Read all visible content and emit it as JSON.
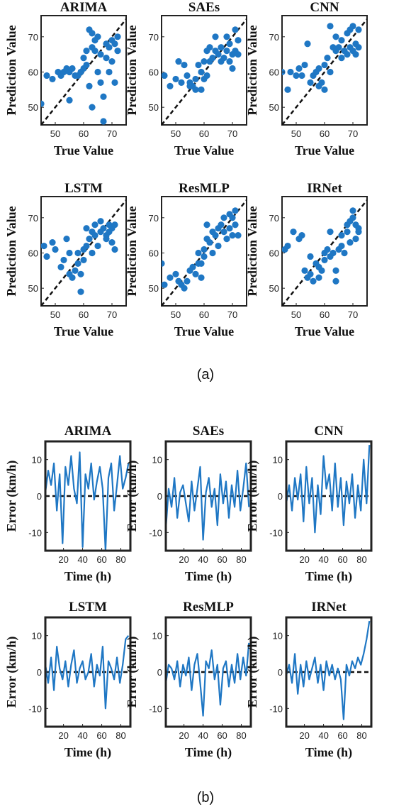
{
  "captions": {
    "a": "(a)",
    "b": "(b)"
  },
  "colors": {
    "series": "#1f77c4",
    "reference": "#111111",
    "axes": "#222222"
  },
  "chart_data": [
    {
      "id": "a",
      "type": "scatter",
      "xlabel": "True Value",
      "ylabel": "Prediction Value",
      "xlim": [
        45,
        75
      ],
      "ylim": [
        45,
        76
      ],
      "xticks": [
        50,
        60,
        70
      ],
      "yticks": [
        50,
        60,
        70
      ],
      "reference_line": "y = x (dashed)",
      "panels": [
        {
          "title": "ARIMA",
          "points": [
            [
              45,
              51
            ],
            [
              47,
              59
            ],
            [
              49,
              58
            ],
            [
              51,
              60
            ],
            [
              52,
              59
            ],
            [
              53,
              60
            ],
            [
              54,
              61
            ],
            [
              55,
              60
            ],
            [
              55,
              52
            ],
            [
              56,
              61
            ],
            [
              57,
              59
            ],
            [
              58,
              59
            ],
            [
              59,
              60
            ],
            [
              60,
              61
            ],
            [
              60,
              64
            ],
            [
              61,
              62
            ],
            [
              61,
              66
            ],
            [
              62,
              72
            ],
            [
              63,
              67
            ],
            [
              63,
              71
            ],
            [
              62,
              56
            ],
            [
              63,
              50
            ],
            [
              64,
              66
            ],
            [
              64,
              69
            ],
            [
              65,
              70
            ],
            [
              65,
              60
            ],
            [
              66,
              57
            ],
            [
              66,
              65
            ],
            [
              67,
              53
            ],
            [
              67,
              46
            ],
            [
              68,
              64
            ],
            [
              68,
              68
            ],
            [
              69,
              67
            ],
            [
              69,
              60
            ],
            [
              70,
              69
            ],
            [
              70,
              63
            ],
            [
              71,
              68
            ],
            [
              71,
              57
            ],
            [
              72,
              66
            ],
            [
              72,
              70
            ]
          ]
        },
        {
          "title": "SAEs",
          "points": [
            [
              46,
              59
            ],
            [
              48,
              56
            ],
            [
              50,
              58
            ],
            [
              51,
              63
            ],
            [
              52,
              57
            ],
            [
              53,
              62
            ],
            [
              54,
              59
            ],
            [
              55,
              57
            ],
            [
              55,
              56
            ],
            [
              56,
              56
            ],
            [
              57,
              58
            ],
            [
              57,
              55
            ],
            [
              58,
              62
            ],
            [
              59,
              60
            ],
            [
              59,
              55
            ],
            [
              60,
              58
            ],
            [
              60,
              63
            ],
            [
              61,
              66
            ],
            [
              61,
              59
            ],
            [
              62,
              63
            ],
            [
              62,
              67
            ],
            [
              63,
              64
            ],
            [
              64,
              66
            ],
            [
              64,
              70
            ],
            [
              65,
              65
            ],
            [
              66,
              67
            ],
            [
              66,
              63
            ],
            [
              67,
              64
            ],
            [
              68,
              66
            ],
            [
              68,
              70
            ],
            [
              69,
              68
            ],
            [
              69,
              63
            ],
            [
              70,
              65
            ],
            [
              70,
              61
            ],
            [
              71,
              66
            ],
            [
              71,
              72
            ],
            [
              72,
              65
            ],
            [
              72,
              69
            ]
          ]
        },
        {
          "title": "CNN",
          "points": [
            [
              45,
              60
            ],
            [
              47,
              55
            ],
            [
              48,
              60
            ],
            [
              50,
              59
            ],
            [
              51,
              61
            ],
            [
              52,
              59
            ],
            [
              53,
              62
            ],
            [
              54,
              68
            ],
            [
              55,
              57
            ],
            [
              56,
              59
            ],
            [
              57,
              60
            ],
            [
              58,
              61
            ],
            [
              58,
              56
            ],
            [
              59,
              57
            ],
            [
              60,
              62
            ],
            [
              60,
              55
            ],
            [
              61,
              64
            ],
            [
              62,
              73
            ],
            [
              62,
              60
            ],
            [
              63,
              67
            ],
            [
              64,
              66
            ],
            [
              64,
              70
            ],
            [
              65,
              67
            ],
            [
              66,
              69
            ],
            [
              66,
              64
            ],
            [
              67,
              66
            ],
            [
              68,
              65
            ],
            [
              68,
              71
            ],
            [
              69,
              72
            ],
            [
              69,
              67
            ],
            [
              70,
              66
            ],
            [
              70,
              73
            ],
            [
              71,
              68
            ],
            [
              71,
              65
            ],
            [
              72,
              72
            ],
            [
              72,
              67
            ]
          ]
        },
        {
          "title": "LSTM",
          "points": [
            [
              46,
              62
            ],
            [
              47,
              59
            ],
            [
              49,
              63
            ],
            [
              50,
              61
            ],
            [
              52,
              56
            ],
            [
              53,
              58
            ],
            [
              54,
              64
            ],
            [
              55,
              60
            ],
            [
              55,
              54
            ],
            [
              56,
              53
            ],
            [
              57,
              55
            ],
            [
              58,
              60
            ],
            [
              58,
              57
            ],
            [
              59,
              54
            ],
            [
              59,
              49
            ],
            [
              60,
              58
            ],
            [
              60,
              61
            ],
            [
              61,
              67
            ],
            [
              61,
              62
            ],
            [
              62,
              64
            ],
            [
              63,
              66
            ],
            [
              63,
              60
            ],
            [
              64,
              65
            ],
            [
              64,
              68
            ],
            [
              65,
              62
            ],
            [
              66,
              66
            ],
            [
              66,
              69
            ],
            [
              67,
              67
            ],
            [
              68,
              65
            ],
            [
              68,
              64
            ],
            [
              69,
              68
            ],
            [
              69,
              66
            ],
            [
              70,
              67
            ],
            [
              70,
              63
            ],
            [
              71,
              68
            ],
            [
              71,
              61
            ]
          ]
        },
        {
          "title": "ResMLP",
          "points": [
            [
              45,
              57
            ],
            [
              46,
              51
            ],
            [
              48,
              53
            ],
            [
              50,
              54
            ],
            [
              51,
              52
            ],
            [
              52,
              51
            ],
            [
              53,
              50
            ],
            [
              54,
              52
            ],
            [
              55,
              55
            ],
            [
              56,
              56
            ],
            [
              57,
              54
            ],
            [
              58,
              57
            ],
            [
              58,
              60
            ],
            [
              59,
              57
            ],
            [
              59,
              53
            ],
            [
              60,
              61
            ],
            [
              60,
              59
            ],
            [
              61,
              68
            ],
            [
              61,
              64
            ],
            [
              62,
              63
            ],
            [
              63,
              66
            ],
            [
              63,
              60
            ],
            [
              64,
              65
            ],
            [
              65,
              62
            ],
            [
              65,
              67
            ],
            [
              66,
              68
            ],
            [
              67,
              66
            ],
            [
              67,
              70
            ],
            [
              68,
              64
            ],
            [
              69,
              67
            ],
            [
              69,
              71
            ],
            [
              70,
              65
            ],
            [
              70,
              70
            ],
            [
              71,
              68
            ],
            [
              71,
              72
            ],
            [
              72,
              65
            ]
          ]
        },
        {
          "title": "IRNet",
          "points": [
            [
              46,
              61
            ],
            [
              47,
              62
            ],
            [
              49,
              66
            ],
            [
              51,
              64
            ],
            [
              52,
              65
            ],
            [
              53,
              55
            ],
            [
              54,
              53
            ],
            [
              55,
              59
            ],
            [
              55,
              54
            ],
            [
              56,
              52
            ],
            [
              57,
              57
            ],
            [
              58,
              53
            ],
            [
              58,
              56
            ],
            [
              59,
              55
            ],
            [
              60,
              58
            ],
            [
              60,
              60
            ],
            [
              61,
              61
            ],
            [
              62,
              66
            ],
            [
              62,
              59
            ],
            [
              63,
              60
            ],
            [
              64,
              55
            ],
            [
              64,
              52
            ],
            [
              65,
              61
            ],
            [
              66,
              65
            ],
            [
              66,
              62
            ],
            [
              67,
              60
            ],
            [
              68,
              68
            ],
            [
              68,
              66
            ],
            [
              69,
              69
            ],
            [
              69,
              63
            ],
            [
              70,
              70
            ],
            [
              70,
              72
            ],
            [
              71,
              68
            ],
            [
              71,
              64
            ],
            [
              72,
              67
            ],
            [
              72,
              66
            ]
          ]
        }
      ]
    },
    {
      "id": "b",
      "type": "line",
      "xlabel": "Time (h)",
      "ylabel": "Error (km/h)",
      "xlim": [
        1,
        90
      ],
      "ylim": [
        -15,
        15
      ],
      "xticks": [
        20,
        40,
        60,
        80
      ],
      "yticks": [
        -10,
        0,
        10
      ],
      "reference_line": "y = 0 (dashed)",
      "x": [
        1,
        4,
        7,
        10,
        13,
        16,
        19,
        22,
        25,
        28,
        31,
        34,
        37,
        40,
        43,
        46,
        49,
        52,
        55,
        58,
        61,
        64,
        67,
        70,
        73,
        76,
        79,
        82,
        85,
        88
      ],
      "panels": [
        {
          "title": "ARIMA",
          "values": [
            1,
            7,
            3,
            9,
            -4,
            6,
            -13,
            8,
            3,
            11,
            2,
            -2,
            12,
            -14,
            6,
            2,
            9,
            -1,
            4,
            8,
            2,
            -15,
            5,
            9,
            -4,
            3,
            11,
            2,
            5,
            9
          ]
        },
        {
          "title": "SAEs",
          "values": [
            -9,
            2,
            -3,
            5,
            -6,
            1,
            3,
            -2,
            -7,
            4,
            -4,
            2,
            8,
            -12,
            1,
            5,
            -3,
            2,
            -8,
            6,
            -2,
            4,
            -6,
            3,
            -3,
            7,
            -4,
            2,
            9,
            -3
          ]
        },
        {
          "title": "CNN",
          "values": [
            -2,
            3,
            -4,
            5,
            -1,
            6,
            -7,
            8,
            -2,
            5,
            -10,
            3,
            -5,
            11,
            2,
            6,
            -4,
            9,
            -3,
            5,
            -8,
            4,
            -2,
            6,
            -6,
            3,
            -4,
            10,
            -2,
            14
          ]
        },
        {
          "title": "LSTM",
          "values": [
            2,
            -3,
            4,
            -5,
            7,
            1,
            -2,
            3,
            -4,
            2,
            6,
            -3,
            1,
            3,
            -2,
            0,
            5,
            -4,
            2,
            -1,
            7,
            -10,
            3,
            1,
            -2,
            4,
            -3,
            2,
            9,
            10
          ]
        },
        {
          "title": "ResMLP",
          "values": [
            -3,
            2,
            1,
            -2,
            3,
            -4,
            2,
            -1,
            4,
            -5,
            2,
            5,
            -3,
            -12,
            3,
            1,
            6,
            -2,
            2,
            -9,
            1,
            3,
            -4,
            2,
            -3,
            5,
            -2,
            4,
            -1,
            8
          ]
        },
        {
          "title": "IRNet",
          "values": [
            -1,
            2,
            -3,
            5,
            -6,
            2,
            -4,
            3,
            -2,
            1,
            4,
            -3,
            2,
            -5,
            3,
            -1,
            2,
            -2,
            1,
            -2,
            -13,
            2,
            -1,
            3,
            1,
            4,
            2,
            5,
            9,
            14
          ]
        }
      ]
    }
  ]
}
